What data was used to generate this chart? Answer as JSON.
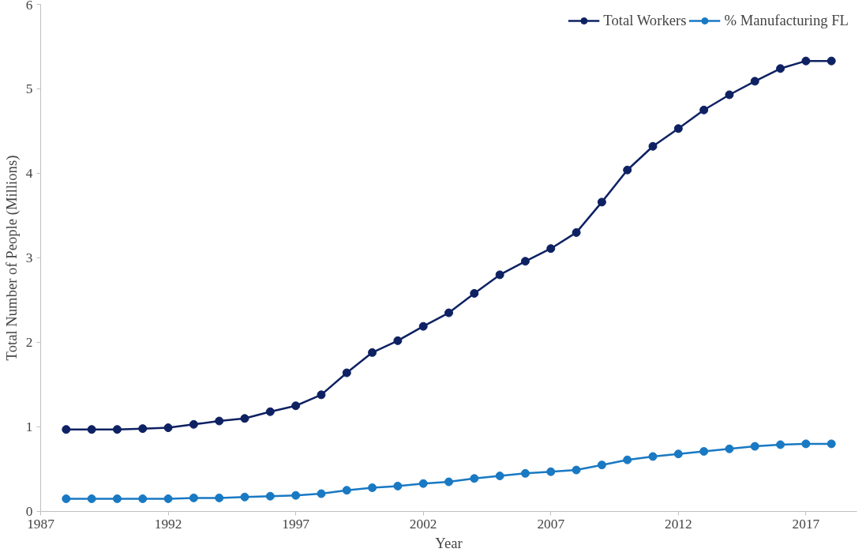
{
  "chart_data": {
    "type": "line",
    "xlabel": "Year",
    "ylabel": "Total Number of People (Millions)",
    "x": [
      1988,
      1989,
      1990,
      1991,
      1992,
      1993,
      1994,
      1995,
      1996,
      1997,
      1998,
      1999,
      2000,
      2001,
      2002,
      2003,
      2004,
      2005,
      2006,
      2007,
      2008,
      2009,
      2010,
      2011,
      2012,
      2013,
      2014,
      2015,
      2016,
      2017,
      2018
    ],
    "series": [
      {
        "name": "Total Workers",
        "color": "#0e2163",
        "values": [
          0.97,
          0.97,
          0.97,
          0.98,
          0.99,
          1.03,
          1.07,
          1.1,
          1.18,
          1.25,
          1.38,
          1.64,
          1.88,
          2.02,
          2.19,
          2.35,
          2.58,
          2.8,
          2.96,
          3.11,
          3.3,
          3.66,
          4.04,
          4.32,
          4.53,
          4.75,
          4.93,
          5.09,
          5.24,
          5.33,
          5.33
        ]
      },
      {
        "name": "% Manufacturing FL",
        "color": "#1979c3",
        "values": [
          0.15,
          0.15,
          0.15,
          0.15,
          0.15,
          0.16,
          0.16,
          0.17,
          0.18,
          0.19,
          0.21,
          0.25,
          0.28,
          0.3,
          0.33,
          0.35,
          0.39,
          0.42,
          0.45,
          0.47,
          0.49,
          0.55,
          0.61,
          0.65,
          0.68,
          0.71,
          0.74,
          0.77,
          0.79,
          0.8,
          0.8
        ]
      }
    ],
    "xlim": [
      1987,
      2019
    ],
    "xticks": [
      1987,
      1992,
      1997,
      2002,
      2007,
      2012,
      2017
    ],
    "ylim": [
      0,
      6
    ],
    "yticks": [
      0,
      1,
      2,
      3,
      4,
      5,
      6
    ],
    "grid": false,
    "legend": "top right",
    "marker": "circle",
    "line_style": "solid"
  }
}
